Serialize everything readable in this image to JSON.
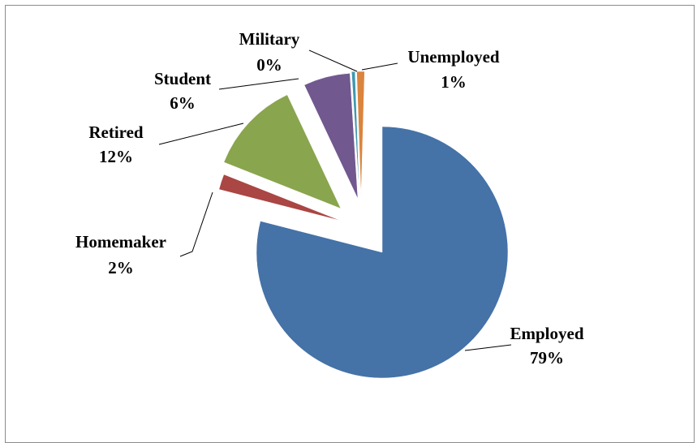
{
  "chart_data": {
    "type": "pie",
    "title": "",
    "exploded": true,
    "slices": [
      {
        "label": "Employed",
        "value": 79,
        "value_label": "79%",
        "color": "#4572A7"
      },
      {
        "label": "Homemaker",
        "value": 2,
        "value_label": "2%",
        "color": "#AA4643"
      },
      {
        "label": "Retired",
        "value": 12,
        "value_label": "12%",
        "color": "#89A54E"
      },
      {
        "label": "Student",
        "value": 6,
        "value_label": "6%",
        "color": "#71588F"
      },
      {
        "label": "Military",
        "value": 0,
        "value_label": "0%",
        "color": "#4198AF"
      },
      {
        "label": "Unemployed",
        "value": 1,
        "value_label": "1%",
        "color": "#DB843D"
      }
    ]
  }
}
